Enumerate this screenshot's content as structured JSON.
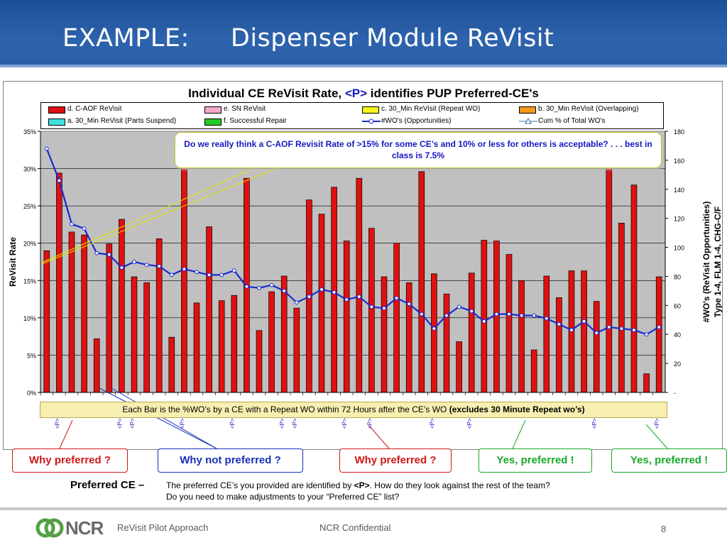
{
  "slide": {
    "title": "EXAMPLE:     Dispenser Module ReVisit"
  },
  "chart_data": {
    "type": "bar",
    "title": "Individual CE ReVisit Rate, <P> identifies PUP Preferred-CE's",
    "title_parts": {
      "prefix": "Individual CE ReVisit Rate, ",
      "marker": "<P>",
      "suffix": " identifies PUP Preferred-CE's"
    },
    "ylabel": "ReVisit Rate",
    "y2label_line1": "#WO's (ReVisit Opportunities)",
    "y2label_line2": "Type 1-4, FLM 1-4, CHG-C/F",
    "ylim": [
      0,
      35
    ],
    "y2lim": [
      0,
      180
    ],
    "y_ticks": [
      "0%",
      "5%",
      "10%",
      "15%",
      "20%",
      "25%",
      "30%",
      "35%"
    ],
    "y2_ticks": [
      "-",
      "20",
      "40",
      "60",
      "80",
      "100",
      "120",
      "140",
      "160",
      "180"
    ],
    "grid": true,
    "legend_placement": "top",
    "legend": [
      {
        "label": "d. C-AOF ReVisit",
        "color": "#e01010",
        "kind": "box"
      },
      {
        "label": "e. SN ReVisit",
        "color": "#f7a8c8",
        "kind": "box"
      },
      {
        "label": "c. 30_Min ReVisit (Repeat WO)",
        "color": "#f5f51a",
        "kind": "box"
      },
      {
        "label": "b. 30_Min ReVisit (Overlapping)",
        "color": "#f39a1a",
        "kind": "box"
      },
      {
        "label": "a. 30_Min ReVisit (Parts Suspend)",
        "color": "#40e0e0",
        "kind": "box"
      },
      {
        "label": "f. Successful Repair",
        "color": "#22cc22",
        "kind": "box"
      },
      {
        "label": "#WO's (Opportunities)",
        "color": "#1a2ad0",
        "kind": "line"
      },
      {
        "label": "Cum % of Total WO's",
        "color": "#2a7a9a",
        "kind": "tri"
      }
    ],
    "series": [
      {
        "name": "d. C-AOF ReVisit",
        "axis": "left",
        "values": [
          19.0,
          29.4,
          21.5,
          21.1,
          7.2,
          19.9,
          23.2,
          15.5,
          14.7,
          20.6,
          7.4,
          31.8,
          12.0,
          22.2,
          12.3,
          13.0,
          28.7,
          8.3,
          13.5,
          15.6,
          11.3,
          25.8,
          23.9,
          27.5,
          20.3,
          28.7,
          22.0,
          15.5,
          20.0,
          14.7,
          29.6,
          15.9,
          13.2,
          6.8,
          16.0,
          20.4,
          20.3,
          18.5,
          15.0,
          5.7,
          15.6,
          12.7,
          16.3,
          16.3,
          12.2,
          31.1,
          22.7,
          27.8,
          2.5,
          15.5
        ]
      },
      {
        "name": "#WO's (Opportunities)",
        "axis": "right",
        "values": [
          168,
          146,
          116,
          113,
          96,
          95,
          86,
          90,
          88,
          87,
          81,
          85,
          83,
          81,
          81,
          84,
          73,
          72,
          74,
          70,
          62,
          66,
          71,
          69,
          64,
          66,
          59,
          58,
          65,
          61,
          54,
          44,
          53,
          59,
          56,
          49,
          54,
          54,
          53,
          53,
          51,
          47,
          43,
          49,
          41,
          45,
          44,
          43,
          40,
          45
        ]
      }
    ],
    "preferred_indices": [
      1,
      6,
      7,
      11,
      15,
      19,
      20,
      24,
      26,
      31,
      34,
      44,
      49
    ],
    "preferred_marker": "<P>",
    "annotation": "Do we really think a C-AOF Revisit Rate of >15% for some CE’s and 10% or less for others is acceptable?  . . . best in class is 7.5%",
    "note_main": "Each Bar is the %WO’s by a CE with a Repeat WO within 72 Hours after the CE’s WO ",
    "note_bold": "(excludes 30 Minute Repeat wo’s)",
    "colors": {
      "bar": "#e01010",
      "line": "#1a2ad0",
      "plot_bg": "#c0c0c0",
      "marker_fill": "#ffffff"
    }
  },
  "callouts": [
    {
      "label": "Why preferred ?",
      "color": "#d01818"
    },
    {
      "label": "Why not preferred ?",
      "color": "#1830b8"
    },
    {
      "label": "Why preferred ?",
      "color": "#d01818"
    },
    {
      "label": "Yes, preferred !",
      "color": "#18a828"
    },
    {
      "label": "Yes, preferred !",
      "color": "#18a828"
    }
  ],
  "preferred": {
    "label": "Preferred CE –",
    "text_before": "The preferred CE’s you provided are identified by ",
    "marker": "<P>",
    "text_after": ".  How do they look against the rest of the team?",
    "line2": "Do you need to make adjustments to your “Preferred CE” list?"
  },
  "footer": {
    "logo_text": "NCR",
    "logo_icon": "ncr-logo-icon",
    "left": "ReVisit Pilot Approach",
    "center": "NCR Confidential",
    "page": "8"
  }
}
